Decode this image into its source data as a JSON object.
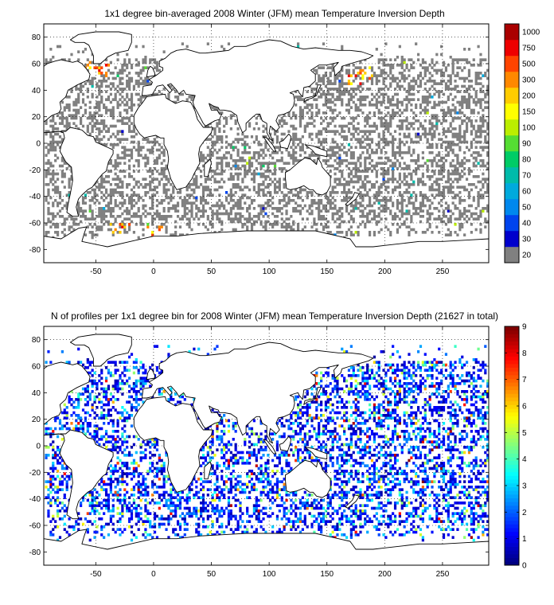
{
  "chart_data": [
    {
      "type": "heatmap",
      "title": "1x1 degree bin-averaged 2008 Winter (JFM) mean Temperature Inversion Depth",
      "xlim": [
        -95,
        290
      ],
      "ylim": [
        -90,
        90
      ],
      "x_ticks": [
        -50,
        0,
        50,
        100,
        150,
        200,
        250
      ],
      "y_ticks": [
        -80,
        -60,
        -40,
        -20,
        0,
        20,
        40,
        60,
        80
      ],
      "grid": true,
      "colorbar": {
        "type": "discrete",
        "labels": [
          "20",
          "30",
          "40",
          "50",
          "60",
          "70",
          "80",
          "90",
          "100",
          "150",
          "200",
          "300",
          "500",
          "750",
          "1000"
        ],
        "colors": [
          "#808080",
          "#0000cc",
          "#0044ee",
          "#0088ee",
          "#00aadd",
          "#00bbaa",
          "#00cc66",
          "#55dd33",
          "#bbee00",
          "#ffff00",
          "#ffcc00",
          "#ff8800",
          "#ff4400",
          "#ee0000",
          "#aa0000"
        ]
      },
      "dominant_value": 20,
      "hotspots": [
        {
          "lon": -52,
          "lat": 60,
          "value": "200-500"
        },
        {
          "lon": -48,
          "lat": 55,
          "value": "100-300"
        },
        {
          "lon": 180,
          "lat": 52,
          "value": "150-500"
        },
        {
          "lon": 175,
          "lat": 48,
          "value": "100-200"
        },
        {
          "lon": -30,
          "lat": -66,
          "value": "300-500"
        },
        {
          "lon": 0,
          "lat": -68,
          "value": "200-300"
        }
      ]
    },
    {
      "type": "heatmap",
      "title": "N of profiles per 1x1 degree bin for 2008 Winter (JFM) mean Temperature Inversion Depth  (21627 in total)",
      "xlim": [
        -95,
        290
      ],
      "ylim": [
        -90,
        90
      ],
      "x_ticks": [
        -50,
        0,
        50,
        100,
        150,
        200,
        250
      ],
      "y_ticks": [
        -80,
        -60,
        -40,
        -20,
        0,
        20,
        40,
        60,
        80
      ],
      "grid": true,
      "total_profiles": 21627,
      "colorbar": {
        "type": "continuous",
        "colormap": "jet",
        "range": [
          0,
          9
        ],
        "ticks": [
          "0",
          "1",
          "2",
          "3",
          "4",
          "5",
          "6",
          "7",
          "8",
          "9"
        ]
      },
      "dominant_value": 1
    }
  ]
}
